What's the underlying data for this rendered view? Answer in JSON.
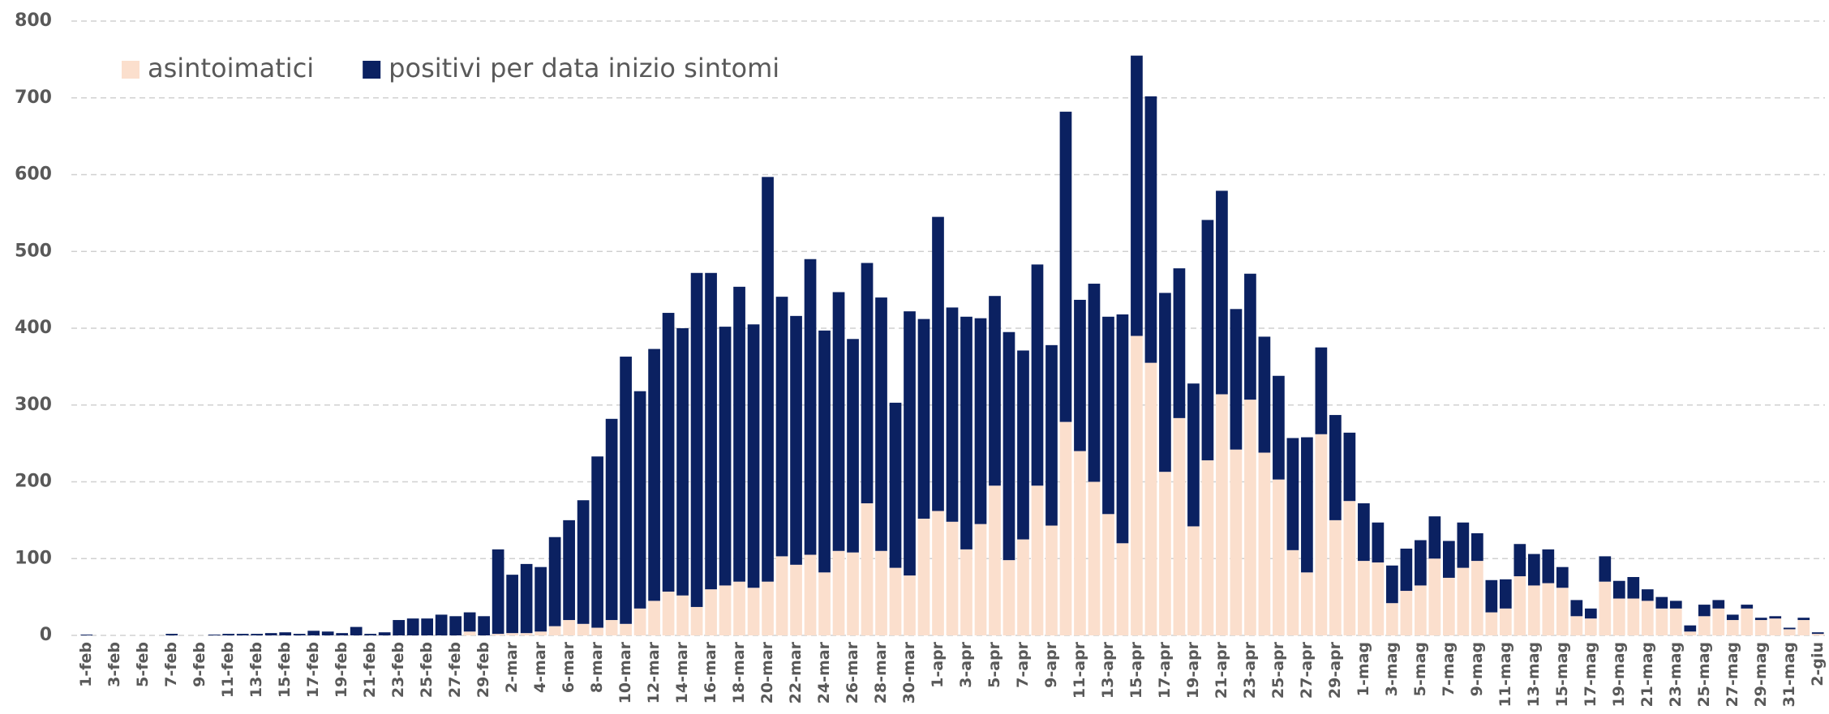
{
  "chart_data": {
    "type": "stacked_bar",
    "categories": [
      "1-feb",
      null,
      "3-feb",
      null,
      "5-feb",
      null,
      "7-feb",
      null,
      "9-feb",
      null,
      "11-feb",
      null,
      "13-feb",
      null,
      "15-feb",
      null,
      "17-feb",
      null,
      "19-feb",
      null,
      "21-feb",
      null,
      "23-feb",
      null,
      "25-feb",
      null,
      "27-feb",
      null,
      "29-feb",
      null,
      "2-mar",
      null,
      "4-mar",
      null,
      "6-mar",
      null,
      "8-mar",
      null,
      "10-mar",
      null,
      "12-mar",
      null,
      "14-mar",
      null,
      "16-mar",
      null,
      "18-mar",
      null,
      "20-mar",
      null,
      "22-mar",
      null,
      "24-mar",
      null,
      "26-mar",
      null,
      "28-mar",
      null,
      "30-mar",
      null,
      "1-apr",
      null,
      "3-apr",
      null,
      "5-apr",
      null,
      "7-apr",
      null,
      "9-apr",
      null,
      "11-apr",
      null,
      "13-apr",
      null,
      "15-apr",
      null,
      "17-apr",
      null,
      "19-apr",
      null,
      "21-apr",
      null,
      "23-apr",
      null,
      "25-apr",
      null,
      "27-apr",
      null,
      "29-apr",
      null,
      "1-mag",
      null,
      "3-mag",
      null,
      "5-mag",
      null,
      "7-mag",
      null,
      "9-mag",
      null,
      "11-mag",
      null,
      "13-mag",
      null,
      "15-mag",
      null,
      "17-mag",
      null,
      "19-mag",
      null,
      "21-mag",
      null,
      "23-mag",
      null,
      "25-mag",
      null,
      "27-mag",
      null,
      "29-mag",
      null,
      "31-mag",
      null,
      "2-giu"
    ],
    "series": [
      {
        "name": "asintoimatici",
        "color": "#fbdfcd",
        "values": [
          0,
          0,
          0,
          0,
          0,
          0,
          0,
          0,
          0,
          0,
          0,
          0,
          0,
          0,
          0,
          0,
          0,
          0,
          0,
          0,
          0,
          0,
          0,
          0,
          0,
          0,
          0,
          5,
          0,
          2,
          3,
          3,
          5,
          12,
          20,
          15,
          10,
          20,
          15,
          35,
          45,
          57,
          52,
          37,
          60,
          65,
          70,
          62,
          70,
          103,
          92,
          105,
          82,
          110,
          108,
          172,
          110,
          88,
          78,
          152,
          162,
          148,
          112,
          145,
          195,
          98,
          125,
          195,
          143,
          278,
          240,
          200,
          158,
          120,
          390,
          355,
          213,
          283,
          142,
          228,
          314,
          242,
          307,
          238,
          203,
          111,
          82,
          262,
          150,
          175,
          97,
          95,
          42,
          58,
          65,
          100,
          75,
          88,
          97,
          30,
          35,
          77,
          65,
          68,
          62,
          25,
          22,
          70,
          48,
          48,
          45,
          35,
          35,
          5,
          25,
          35,
          20,
          35,
          20,
          22,
          8,
          20,
          2
        ]
      },
      {
        "name": "positivi per data inizio sintomi",
        "color": "#0b2161",
        "values": [
          1,
          0,
          0,
          0,
          0,
          0,
          2,
          0,
          0,
          1,
          2,
          2,
          2,
          3,
          4,
          2,
          6,
          5,
          3,
          11,
          2,
          4,
          20,
          22,
          22,
          27,
          25,
          25,
          25,
          110,
          76,
          90,
          84,
          116,
          130,
          161,
          223,
          262,
          348,
          283,
          328,
          363,
          348,
          435,
          412,
          337,
          384,
          343,
          527,
          338,
          324,
          385,
          315,
          337,
          278,
          313,
          330,
          215,
          344,
          260,
          383,
          279,
          303,
          268,
          247,
          297,
          246,
          288,
          235,
          404,
          197,
          258,
          257,
          298,
          365,
          347,
          233,
          195,
          186,
          313,
          265,
          183,
          164,
          151,
          135,
          146,
          176,
          113,
          137,
          89,
          75,
          52,
          49,
          55,
          59,
          55,
          48,
          59,
          36,
          42,
          38,
          42,
          41,
          44,
          27,
          21,
          13,
          33,
          23,
          28,
          15,
          15,
          10,
          8,
          15,
          11,
          7,
          5,
          3,
          3,
          2,
          3,
          2
        ]
      }
    ],
    "ylim": [
      0,
      800
    ],
    "yticks": [
      0,
      100,
      200,
      300,
      400,
      500,
      600,
      700,
      800
    ],
    "grid": true,
    "legend": "top-left"
  }
}
